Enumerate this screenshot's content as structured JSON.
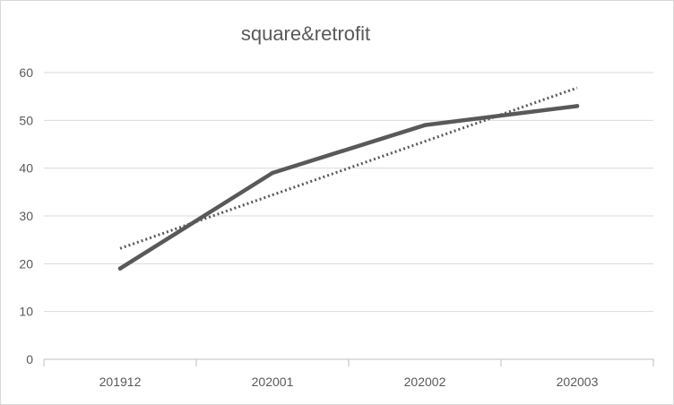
{
  "chart_data": {
    "type": "line",
    "title": "square&retrofit",
    "xlabel": "",
    "ylabel": "",
    "categories": [
      "201912",
      "202001",
      "202002",
      "202003"
    ],
    "series": [
      {
        "values": [
          19,
          39,
          49,
          53
        ],
        "color": "#595959",
        "style": "solid"
      }
    ],
    "trendline": {
      "values": [
        23.2,
        34.4,
        45.6,
        56.8
      ],
      "color": "#595959",
      "style": "dotted"
    },
    "ylim": [
      0,
      60
    ],
    "yticks": [
      0,
      10,
      20,
      30,
      40,
      50,
      60
    ],
    "grid": true,
    "legend": "none"
  }
}
